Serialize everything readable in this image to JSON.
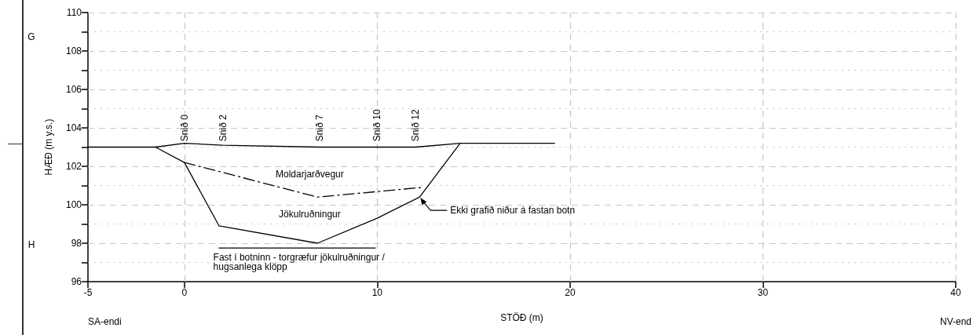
{
  "chart_data": {
    "type": "line",
    "xlabel": "STÖÐ (m)",
    "ylabel": "HÆÐ (m y.s.)",
    "xlim": [
      -5,
      40
    ],
    "xticks": [
      -5,
      0,
      10,
      20,
      30,
      40
    ],
    "ylim": [
      96,
      110
    ],
    "yticks": [
      96,
      {
        "value": 97,
        "label": null
      },
      98,
      {
        "value": 99,
        "label": null
      },
      100,
      {
        "value": 101,
        "label": null
      },
      102,
      {
        "value": 103,
        "label": null
      },
      104,
      {
        "value": 105,
        "label": null
      },
      106,
      {
        "value": 107,
        "label": null
      },
      108,
      {
        "value": 109,
        "label": null
      },
      110
    ],
    "grid": true,
    "marker": "none",
    "series": [
      {
        "color": "#000000",
        "line_style": "solid",
        "x": [
          -5,
          -1.5,
          0,
          2,
          7,
          12,
          14.3,
          19.2
        ],
        "values": [
          103,
          103,
          103.2,
          103.1,
          103,
          103,
          103.2,
          103.2
        ]
      },
      {
        "color": "#000000",
        "line_style": "solid",
        "x": [
          -1.5,
          0,
          1.8,
          6.9,
          10,
          12.2,
          14.3
        ],
        "values": [
          103,
          102.2,
          98.9,
          98,
          99.3,
          100.4,
          103.2
        ]
      },
      {
        "color": "#000000",
        "line_style": "dashed",
        "x": [
          0,
          6.9,
          12.3
        ],
        "values": [
          102.2,
          100.4,
          100.9
        ]
      },
      {
        "color": "#000000",
        "line_style": "solid",
        "x": [
          1.8,
          9.9
        ],
        "values": [
          97.75,
          97.75
        ]
      }
    ],
    "annotations": [
      "Snið 0",
      "Snið 2",
      "Snið 7",
      "Snið 10",
      "Snið 12",
      "Moldarjarðvegur",
      "Jökulruðningur",
      {
        "text": "Ekki grafið niður á fastan botn",
        "x": 12.2,
        "y": 100.4
      },
      "Fast í botninn - torgræfur jökulruðningur /\nhugsanlega klöpp",
      "G",
      "H",
      "SA-endi",
      "NV-end"
    ]
  }
}
